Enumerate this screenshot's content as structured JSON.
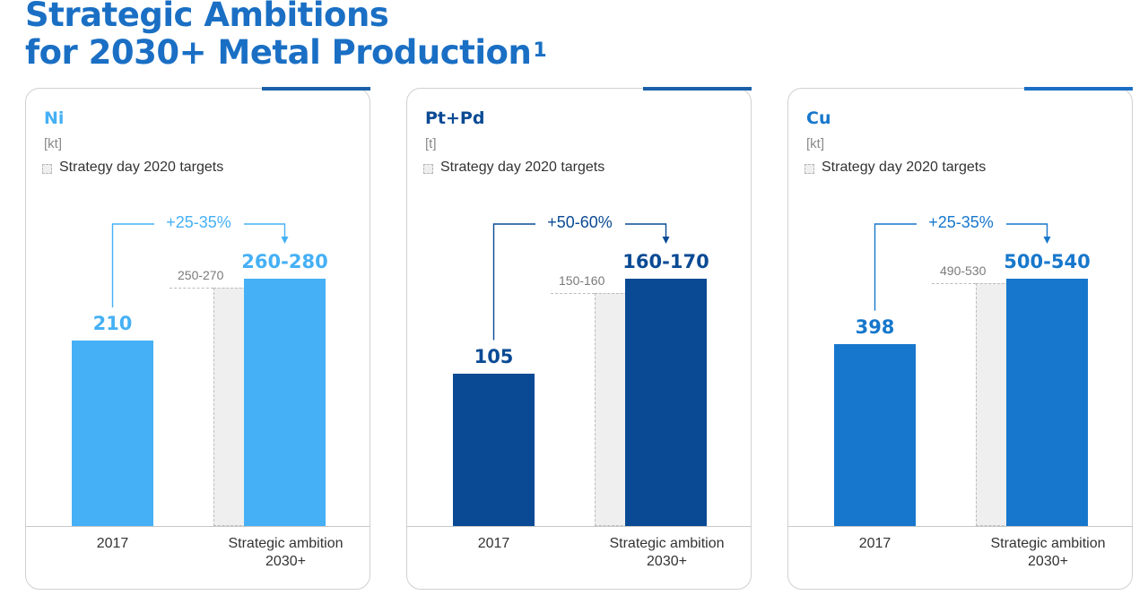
{
  "title": {
    "line1": "Strategic Ambitions",
    "line2": "for 2030+ Metal Production",
    "footnote": "1"
  },
  "legend_label": "Strategy day 2020 targets",
  "categories": [
    "2017",
    "Strategic ambition 2030+"
  ],
  "colors": {
    "title": "#1a6fc4",
    "target_fill": "#efefef",
    "target_border": "#bcbcbc",
    "panel_border": "#d0d0d0",
    "axis_text": "#333333"
  },
  "chart_data": [
    {
      "type": "bar",
      "title": "Ni",
      "unit": "[kt]",
      "color": "#45b0f5",
      "categories": [
        "2017",
        "Strategic ambition 2030+"
      ],
      "values_2017": 210,
      "value_2017_label": "210",
      "ambition_range": [
        260,
        280
      ],
      "ambition_label": "260-280",
      "target_range": [
        250,
        270
      ],
      "target_label": "250-270",
      "growth_label": "+25-35%"
    },
    {
      "type": "bar",
      "title": "Pt+Pd",
      "unit": "[t]",
      "color": "#0a4a94",
      "categories": [
        "2017",
        "Strategic ambition 2030+"
      ],
      "values_2017": 105,
      "value_2017_label": "105",
      "ambition_range": [
        160,
        170
      ],
      "ambition_label": "160-170",
      "target_range": [
        150,
        160
      ],
      "target_label": "150-160",
      "growth_label": "+50-60%"
    },
    {
      "type": "bar",
      "title": "Cu",
      "unit": "[kt]",
      "color": "#1777cc",
      "categories": [
        "2017",
        "Strategic ambition 2030+"
      ],
      "values_2017": 398,
      "value_2017_label": "398",
      "ambition_range": [
        500,
        540
      ],
      "ambition_label": "500-540",
      "target_range": [
        490,
        530
      ],
      "target_label": "490-530",
      "growth_label": "+25-35%"
    }
  ]
}
